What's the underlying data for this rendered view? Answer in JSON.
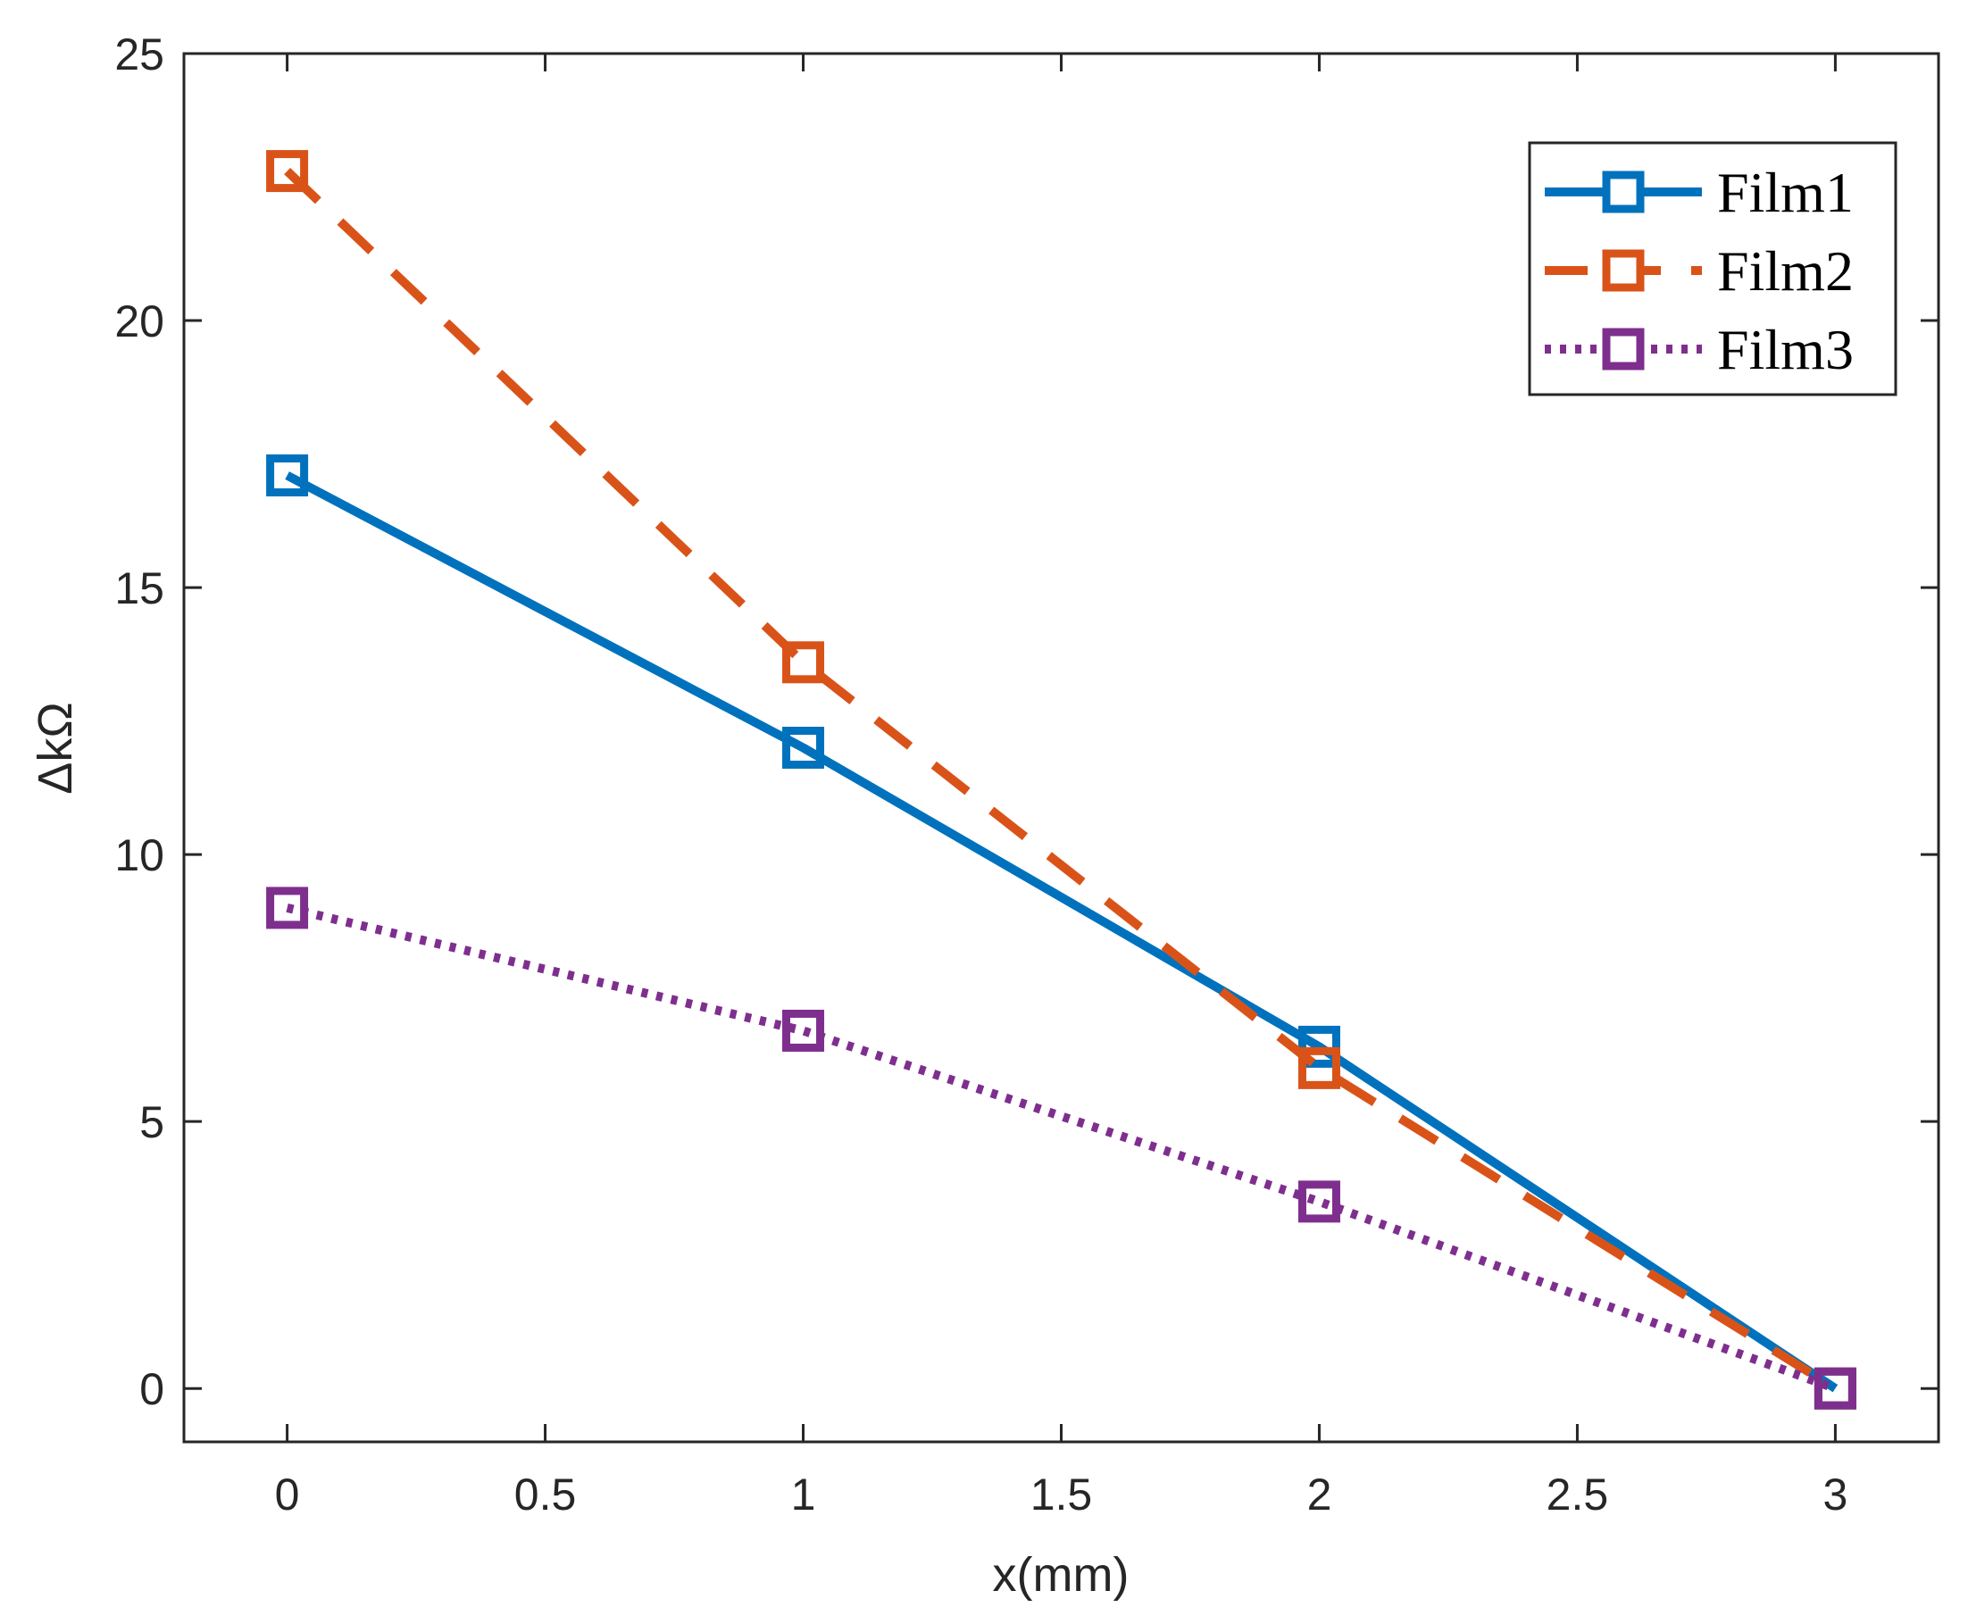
{
  "chart_data": {
    "type": "line",
    "title": "",
    "xlabel": "x(mm)",
    "ylabel": "ΔkΩ",
    "xlim": [
      -0.2,
      3.2
    ],
    "ylim": [
      -1,
      25
    ],
    "xticks": [
      0,
      0.5,
      1,
      1.5,
      2,
      2.5,
      3
    ],
    "xtick_labels": [
      "0",
      "0.5",
      "1",
      "1.5",
      "2",
      "2.5",
      "3"
    ],
    "yticks": [
      0,
      5,
      10,
      15,
      20,
      25
    ],
    "ytick_labels": [
      "0",
      "5",
      "10",
      "15",
      "20",
      "25"
    ],
    "x": [
      0,
      1,
      2,
      3
    ],
    "legend_position": "top-right",
    "series": [
      {
        "name": "Film1",
        "values": [
          17.1,
          12.0,
          6.4,
          0.0
        ],
        "color": "#0072BD",
        "line": "solid"
      },
      {
        "name": "Film2",
        "values": [
          22.8,
          13.6,
          6.0,
          0.0
        ],
        "color": "#D95319",
        "line": "dashed"
      },
      {
        "name": "Film3",
        "values": [
          9.0,
          6.7,
          3.5,
          0.0
        ],
        "color": "#7E2F8E",
        "line": "dotted"
      }
    ]
  }
}
